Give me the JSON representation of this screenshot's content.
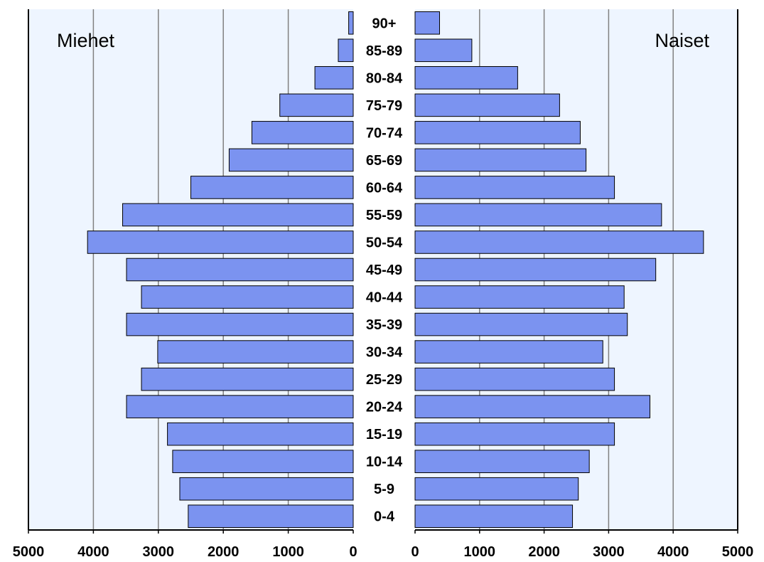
{
  "chart_data": {
    "type": "bar",
    "orientation": "horizontal",
    "layout": "population-pyramid",
    "categories": [
      "90+",
      "85-89",
      "80-84",
      "75-79",
      "70-74",
      "65-69",
      "60-64",
      "55-59",
      "50-54",
      "45-49",
      "40-44",
      "35-39",
      "30-34",
      "25-29",
      "20-24",
      "15-19",
      "10-14",
      "5-9",
      "0-4"
    ],
    "series": [
      {
        "name": "Miehet",
        "values": [
          70,
          230,
          590,
          1130,
          1560,
          1910,
          2500,
          3550,
          4090,
          3490,
          3260,
          3490,
          3010,
          3260,
          3490,
          2860,
          2780,
          2670,
          2540
        ]
      },
      {
        "name": "Naiset",
        "values": [
          380,
          880,
          1590,
          2240,
          2560,
          2650,
          3090,
          3820,
          4470,
          3730,
          3240,
          3290,
          2910,
          3090,
          3640,
          3090,
          2700,
          2530,
          2440
        ]
      }
    ],
    "xlim": [
      0,
      5000
    ],
    "x_ticks": [
      "5000",
      "4000",
      "3000",
      "2000",
      "1000",
      "0",
      "0",
      "1000",
      "2000",
      "3000",
      "4000",
      "5000"
    ],
    "grid": true,
    "colors": {
      "bar_fill": "#7b93f0",
      "bar_stroke": "#000000",
      "plot_background": "#eef5ff",
      "grid": "#808080"
    }
  }
}
